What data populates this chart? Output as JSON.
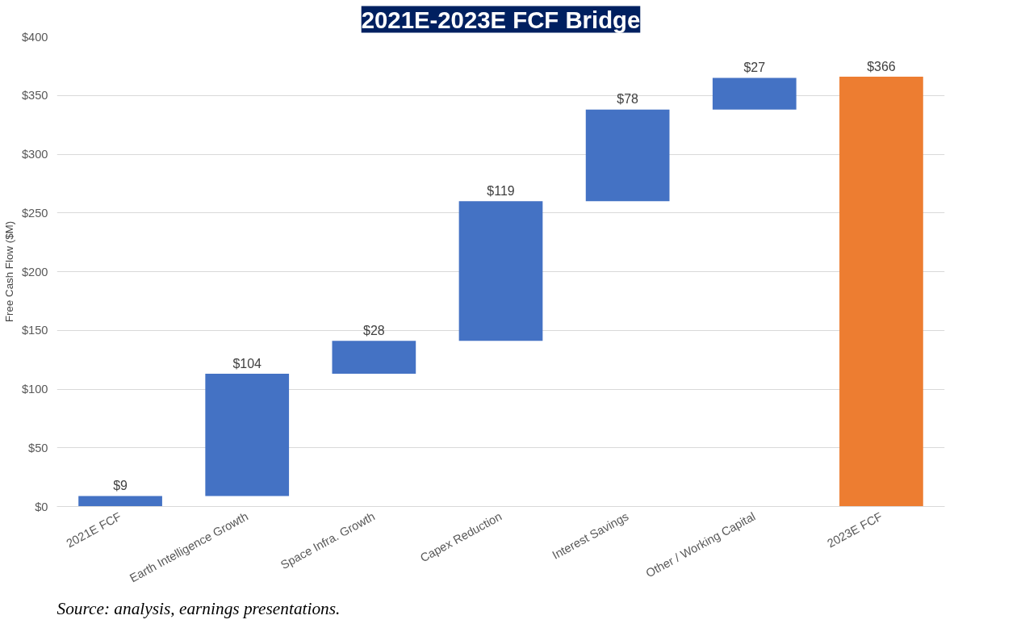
{
  "chart_data": {
    "type": "bar",
    "title": "2021E-2023E FCF Bridge",
    "ylabel": "Free Cash Flow ($M)",
    "categories": [
      "2021E FCF",
      "Earth Intelligence Growth",
      "Space Infra. Growth",
      "Capex Reduction",
      "Interest Savings",
      "Other / Working Capital",
      "2023E FCF"
    ],
    "values": [
      9,
      104,
      28,
      119,
      78,
      27,
      366
    ],
    "base": [
      0,
      9,
      113,
      141,
      260,
      338,
      0
    ],
    "colors": [
      "#4472c4",
      "#4472c4",
      "#4472c4",
      "#4472c4",
      "#4472c4",
      "#4472c4",
      "#ed7d31"
    ],
    "value_labels": [
      "$9",
      "$104",
      "$28",
      "$119",
      "$78",
      "$27",
      "$366"
    ],
    "ylim": [
      0,
      400
    ],
    "yticks": [
      {
        "value": 0,
        "label": "$0"
      },
      {
        "value": 50,
        "label": "$50"
      },
      {
        "value": 100,
        "label": "$100"
      },
      {
        "value": 150,
        "label": "$150"
      },
      {
        "value": 200,
        "label": "$200"
      },
      {
        "value": 250,
        "label": "$250"
      },
      {
        "value": 300,
        "label": "$300"
      },
      {
        "value": 350,
        "label": "$350"
      },
      {
        "value": 400,
        "label": "$400"
      }
    ],
    "grid": "y",
    "annotations": [
      "Source: analysis, earnings presentations."
    ]
  }
}
